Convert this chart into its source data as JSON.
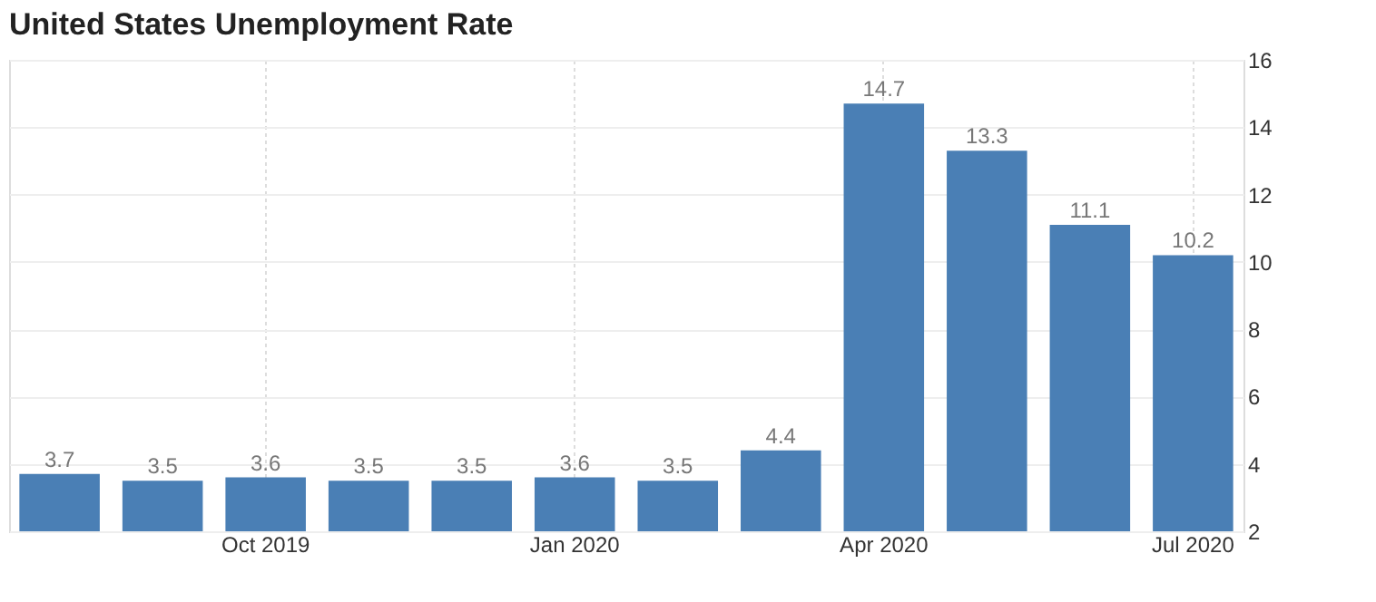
{
  "chart_data": {
    "type": "bar",
    "title": "United States Unemployment Rate",
    "categories": [
      null,
      null,
      "Oct 2019",
      null,
      null,
      "Jan 2020",
      null,
      null,
      "Apr 2020",
      null,
      null,
      "Jul 2020"
    ],
    "values": [
      3.7,
      3.5,
      3.6,
      3.5,
      3.5,
      3.6,
      3.5,
      4.4,
      14.7,
      13.3,
      11.1,
      10.2
    ],
    "color": "#4a7fb5",
    "ylim": [
      2,
      16
    ],
    "yticks": [
      2,
      4,
      6,
      8,
      10,
      12,
      14,
      16
    ],
    "grid": true,
    "data_labels": true
  }
}
